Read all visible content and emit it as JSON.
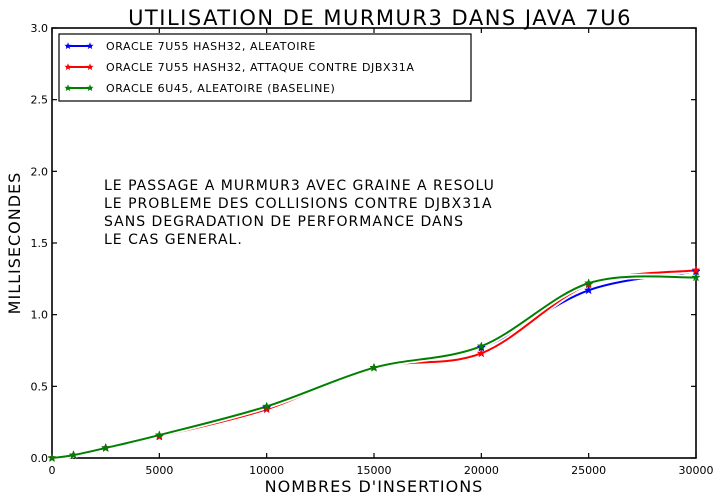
{
  "chart_data": {
    "type": "line",
    "title": "Utilisation de MurmUr3 dans Java 7u6",
    "xlabel": "Nombres d'insertions",
    "ylabel": "Millisecondes",
    "xlim": [
      0,
      30000
    ],
    "ylim": [
      0,
      3.0
    ],
    "x_ticks": [
      0,
      5000,
      10000,
      15000,
      20000,
      25000,
      30000
    ],
    "y_ticks": [
      "0.0",
      "0.5",
      "1.0",
      "1.5",
      "2.0",
      "2.5",
      "3.0"
    ],
    "grid": false,
    "legend_position": "top-left",
    "annotation": [
      "Le passage a MurmUr3 avec graine a resolu",
      "le probleme des collisions contre DJBX31A",
      "sans degradation de performance dans",
      "le cas general."
    ],
    "x": [
      0,
      1000,
      2500,
      5000,
      10000,
      15000,
      20000,
      25000,
      30000
    ],
    "series": [
      {
        "name": "Oracle 7u55 Hash32, aleatoire",
        "color": "#0000ff",
        "values": [
          0.0,
          0.02,
          0.07,
          0.15,
          0.35,
          0.63,
          0.77,
          1.17,
          1.3
        ]
      },
      {
        "name": "Oracle 7u55 Hash32, attaque contre DJBX31A",
        "color": "#ff0000",
        "values": [
          0.0,
          0.02,
          0.07,
          0.15,
          0.34,
          0.63,
          0.73,
          1.21,
          1.31
        ]
      },
      {
        "name": "Oracle 6u45, aleatoire (baseline)",
        "color": "#008000",
        "values": [
          0.0,
          0.02,
          0.07,
          0.16,
          0.36,
          0.63,
          0.78,
          1.22,
          1.26
        ]
      }
    ]
  }
}
